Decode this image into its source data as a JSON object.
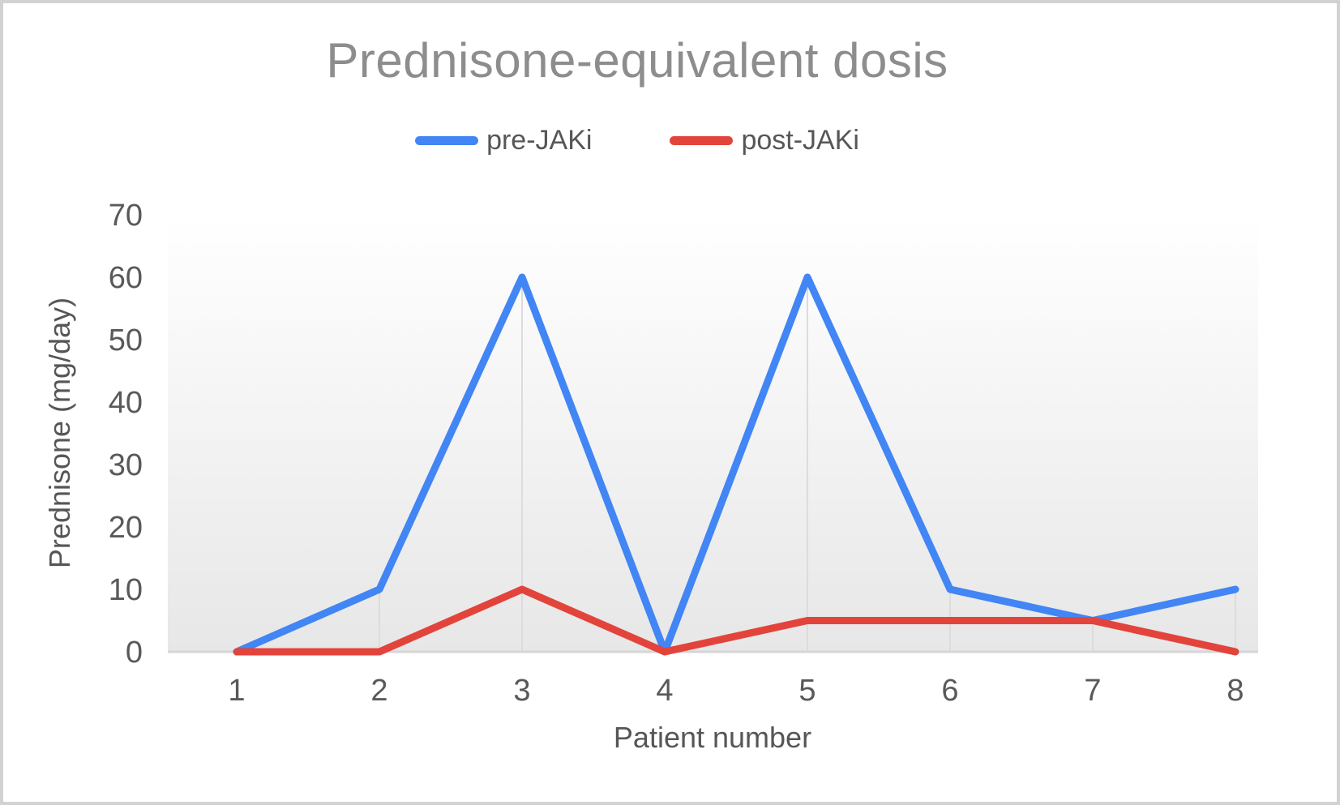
{
  "chart_data": {
    "type": "line",
    "title": "Prednisone-equivalent dosis",
    "xlabel": "Patient number",
    "ylabel": "Prednisone (mg/day)",
    "categories": [
      1,
      2,
      3,
      4,
      5,
      6,
      7,
      8
    ],
    "series": [
      {
        "name": "pre-JAKi",
        "color": "#4285F4",
        "values": [
          0,
          10,
          60,
          0,
          60,
          10,
          5,
          10
        ]
      },
      {
        "name": "post-JAKi",
        "color": "#E2443C",
        "values": [
          0,
          0,
          10,
          0,
          5,
          5,
          5,
          0
        ]
      }
    ],
    "ylim": [
      0,
      70
    ],
    "yticks": [
      0,
      10,
      20,
      30,
      40,
      50,
      60,
      70
    ],
    "grid": "vertical drop lines below pre-JAKi data points",
    "legend_position": "top-center",
    "plot_background": "vertical gradient white to light gray"
  },
  "colors": {
    "title_text": "#8d8d8d",
    "axis_text": "#595959",
    "baseline": "#d6d6d6",
    "drop_line": "#dcdcdc",
    "plot_gradient_top": "#ffffff",
    "plot_gradient_bottom": "#e7e7e7",
    "frame_border": "#d2d2d2"
  }
}
